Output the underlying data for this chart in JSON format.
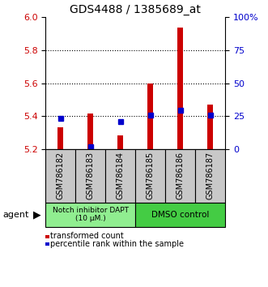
{
  "title": "GDS4488 / 1385689_at",
  "samples": [
    "GSM786182",
    "GSM786183",
    "GSM786184",
    "GSM786185",
    "GSM786186",
    "GSM786187"
  ],
  "red_values": [
    5.335,
    5.415,
    5.285,
    5.6,
    5.935,
    5.47
  ],
  "blue_values": [
    5.385,
    5.215,
    5.365,
    5.405,
    5.435,
    5.405
  ],
  "ylim": [
    5.2,
    6.0
  ],
  "yticks": [
    5.2,
    5.4,
    5.6,
    5.8,
    6.0
  ],
  "right_yticks": [
    0,
    25,
    50,
    75,
    100
  ],
  "right_yticklabels": [
    "0",
    "25",
    "50",
    "75",
    "100%"
  ],
  "right_ylim": [
    0,
    100
  ],
  "group1_label": "Notch inhibitor DAPT\n(10 μM.)",
  "group2_label": "DMSO control",
  "group1_color": "#90EE90",
  "group2_color": "#44CC44",
  "agent_label": "agent",
  "legend1_label": "transformed count",
  "legend2_label": "percentile rank within the sample",
  "red_color": "#CC0000",
  "blue_color": "#0000CC",
  "bar_bottom": 5.2,
  "background_color": "#ffffff",
  "gray_box_color": "#C8C8C8",
  "bar_width": 0.18
}
